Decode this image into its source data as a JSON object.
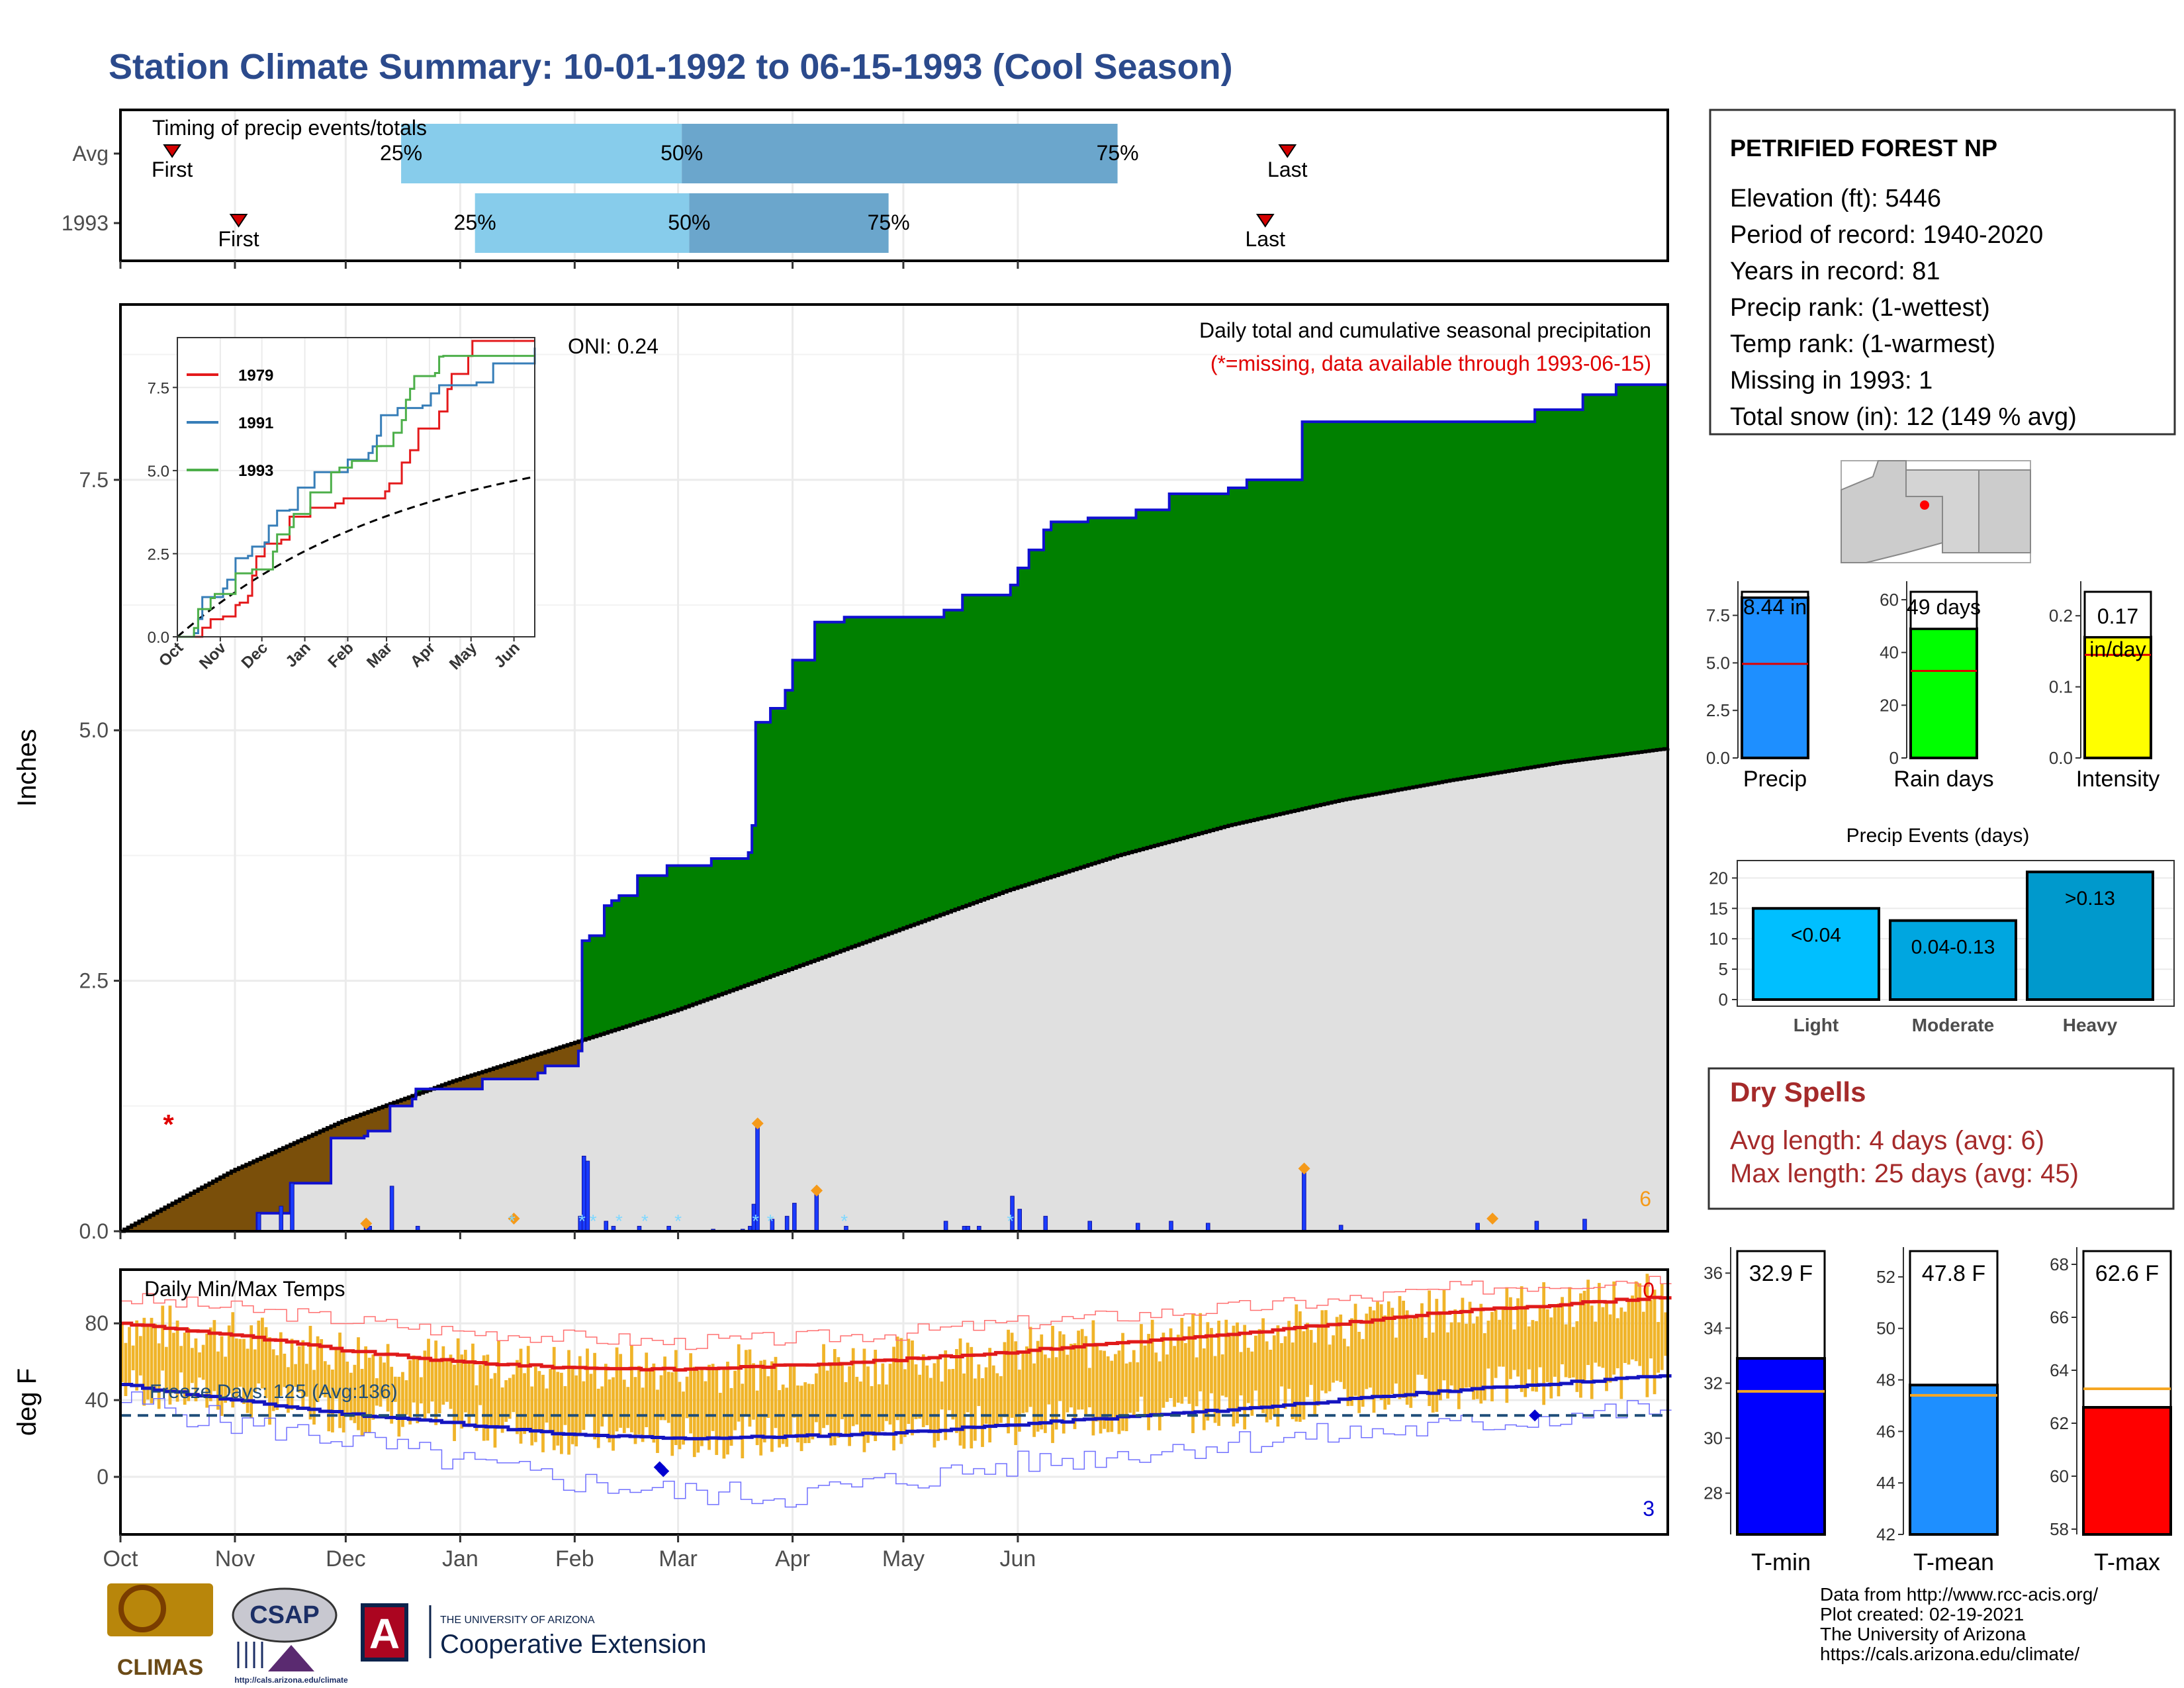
{
  "title": "Station Climate Summary: 10-01-1992 to 06-15-1993 (Cool Season)",
  "colors": {
    "title": "#2b4a8c",
    "cum_avg": "#e0e0e0",
    "cum_year_above": "#008000",
    "cum_year_below": "#7a4f0a",
    "cum_line": "#1010d0",
    "daily_bar": "#1a3cff",
    "marker": "#f59a1a",
    "temp_bar": "#f0b429",
    "tmax_line": "#e01a1a",
    "tmin_line": "#1515c0",
    "freeze_line": "#1f4e79",
    "dry_title": "#a52a2a",
    "timing_light": "#87cceb",
    "timing_dark": "#6ba6cc",
    "precip_bar": "#1e8fff",
    "rain_days_bar": "#00ff00",
    "intensity_bar": "#ffff00",
    "event_light": "#00bfff",
    "event_moderate": "#00a6e0",
    "event_heavy": "#0099cc",
    "tmin_bar": "#0000ff",
    "tmean_bar": "#1e8fff",
    "tmax_bar": "#ff0000"
  },
  "month_labels": [
    "Oct",
    "Nov",
    "Dec",
    "Jan",
    "Feb",
    "Mar",
    "Apr",
    "May",
    "Jun"
  ],
  "timing": {
    "title": "Timing of precip events/totals",
    "rows": [
      {
        "label": "Avg",
        "first_day": 14,
        "p25": 76,
        "p50": 152,
        "p75": 270,
        "last_day": 316,
        "first_text": "First",
        "last_text": "Last",
        "p25_text": "25%",
        "p50_text": "50%",
        "p75_text": "75%"
      },
      {
        "label": "1993",
        "first_day": 32,
        "p25": 96,
        "p50": 154,
        "p75": 208,
        "last_day": 310,
        "first_text": "First",
        "last_text": "Last",
        "p25_text": "25%",
        "p50_text": "50%",
        "p75_text": "75%"
      }
    ]
  },
  "station": {
    "name": "PETRIFIED FOREST NP",
    "lines": [
      "Elevation (ft): 5446",
      "Period of record: 1940-2020",
      "Years in record: 81",
      "Precip rank:  (1-wettest)",
      "Temp rank:  (1-warmest)",
      "Missing in 1993: 1",
      "Total snow (in): 12 (149 % avg)"
    ]
  },
  "main_panel": {
    "ylabel": "Inches",
    "ylim": [
      0,
      9.25
    ],
    "yticks": [
      "0.0",
      "2.5",
      "5.0",
      "7.5"
    ],
    "oni": "ONI: 0.24",
    "legend_title": "Daily total and cumulative seasonal precipitation",
    "legend_note": "(*=missing, data available through 1993-06-15)",
    "count_label": "6",
    "missing_marker": "*",
    "missing_day": 13
  },
  "inset": {
    "yticks": [
      "0.0",
      "2.5",
      "5.0",
      "7.5"
    ],
    "months": [
      "Oct",
      "Nov",
      "Dec",
      "Jan",
      "Feb",
      "Mar",
      "Apr",
      "May",
      "Jun"
    ],
    "legend": [
      {
        "name": "1979",
        "color": "#e41a1c"
      },
      {
        "name": "1991",
        "color": "#377eb8"
      },
      {
        "name": "1993",
        "color": "#4daf4a"
      }
    ]
  },
  "temp_panel": {
    "ylabel": "deg F",
    "title": "Daily Min/Max Temps",
    "yticks": [
      "0",
      "40",
      "80"
    ],
    "freeze_text": "Freeze Days: 125 (Avg:136)",
    "count_top": "0",
    "count_bottom": "3"
  },
  "side_bars": {
    "precip": {
      "label": "Precip",
      "value": 8.44,
      "value_text": "8.44 in",
      "avg": 4.95,
      "ymax": 8.6,
      "ticks": [
        "0.0",
        "2.5",
        "5.0",
        "7.5"
      ]
    },
    "rain_days": {
      "label": "Rain days",
      "value": 49,
      "value_text": "49 days",
      "avg": 33,
      "ymax": 62,
      "ticks": [
        "0",
        "20",
        "40",
        "60"
      ]
    },
    "intensity": {
      "label": "Intensity",
      "value": 0.17,
      "value_text": "0.17 in/day",
      "avg": 0.145,
      "ymax": 0.23,
      "ticks": [
        "0.0",
        "0.1",
        "0.2"
      ]
    }
  },
  "precip_events": {
    "title": "Precip Events (days)",
    "categories": [
      "Light",
      "Moderate",
      "Heavy"
    ],
    "values": [
      15,
      13,
      21
    ],
    "labels": [
      "<0.04",
      "0.04-0.13",
      ">0.13"
    ],
    "ticks": [
      "0",
      "5",
      "10",
      "15",
      "20"
    ]
  },
  "dry_spells": {
    "title": "Dry Spells",
    "lines": [
      "Avg length: 4 days (avg: 6)",
      "Max length: 25 days (avg: 45)"
    ]
  },
  "temp_bars": {
    "tmin": {
      "label": "T-min",
      "value": 32.9,
      "value_text": "32.9 F",
      "avg": 31.7,
      "ylim": [
        26.5,
        36.8
      ],
      "ticks": [
        "28",
        "30",
        "32",
        "34",
        "36"
      ]
    },
    "tmean": {
      "label": "T-mean",
      "value": 47.8,
      "value_text": "47.8 F",
      "avg": 47.4,
      "ylim": [
        42,
        53
      ],
      "ticks": [
        "42",
        "44",
        "46",
        "48",
        "50",
        "52"
      ]
    },
    "tmax": {
      "label": "T-max",
      "value": 62.6,
      "value_text": "62.6 F",
      "avg": 63.3,
      "ylim": [
        57.8,
        68.5
      ],
      "ticks": [
        "58",
        "60",
        "62",
        "64",
        "66",
        "68"
      ]
    }
  },
  "footer": {
    "lines": [
      "Data from http://www.rcc-acis.org/",
      "Plot created: 02-19-2021",
      "The University of Arizona",
      "https://cals.arizona.edu/climate/"
    ],
    "logo_climas": "CLIMAS",
    "logo_csap": "CSAP",
    "logo_csap_url": "http://cals.arizona.edu/climate",
    "logo_uofa_small": "THE UNIVERSITY OF ARIZONA",
    "logo_uofa_big": "Cooperative Extension",
    "logo_uofa_letter": "A"
  },
  "chart_data": [
    {
      "type": "area",
      "title": "Daily total and cumulative seasonal precipitation",
      "ylabel": "Inches",
      "ylim": [
        0,
        9.25
      ],
      "x_unit": "days since 1992-10-01",
      "cumulative_1993": [
        [
          0,
          0
        ],
        [
          35,
          0
        ],
        [
          37,
          0.18
        ],
        [
          46,
          0.48
        ],
        [
          57,
          0.93
        ],
        [
          66,
          0.95
        ],
        [
          67,
          1.0
        ],
        [
          73,
          1.25
        ],
        [
          79,
          1.32
        ],
        [
          80,
          1.42
        ],
        [
          97,
          1.42
        ],
        [
          98,
          1.52
        ],
        [
          113,
          1.58
        ],
        [
          115,
          1.65
        ],
        [
          124,
          1.8
        ],
        [
          125,
          2.9
        ],
        [
          127,
          2.95
        ],
        [
          131,
          3.25
        ],
        [
          133,
          3.3
        ],
        [
          135,
          3.35
        ],
        [
          140,
          3.55
        ],
        [
          148,
          3.65
        ],
        [
          160,
          3.72
        ],
        [
          170,
          3.78
        ],
        [
          171,
          4.05
        ],
        [
          172,
          5.08
        ],
        [
          176,
          5.22
        ],
        [
          180,
          5.4
        ],
        [
          182,
          5.7
        ],
        [
          188,
          6.08
        ],
        [
          196,
          6.13
        ],
        [
          223,
          6.2
        ],
        [
          228,
          6.35
        ],
        [
          241,
          6.45
        ],
        [
          243,
          6.62
        ],
        [
          246,
          6.8
        ],
        [
          250,
          7.0
        ],
        [
          252,
          7.08
        ],
        [
          262,
          7.12
        ],
        [
          275,
          7.2
        ],
        [
          284,
          7.36
        ],
        [
          300,
          7.42
        ],
        [
          305,
          7.5
        ],
        [
          320,
          8.08
        ],
        [
          383,
          8.2
        ],
        [
          396,
          8.35
        ],
        [
          405,
          8.45
        ],
        [
          419,
          8.45
        ]
      ],
      "average_cumulative": [
        [
          0,
          0
        ],
        [
          30,
          0.6
        ],
        [
          60,
          1.1
        ],
        [
          90,
          1.5
        ],
        [
          120,
          1.85
        ],
        [
          150,
          2.2
        ],
        [
          180,
          2.6
        ],
        [
          210,
          3.0
        ],
        [
          240,
          3.4
        ],
        [
          270,
          3.75
        ],
        [
          300,
          4.05
        ],
        [
          330,
          4.3
        ],
        [
          360,
          4.5
        ],
        [
          390,
          4.68
        ],
        [
          419,
          4.82
        ]
      ],
      "daily_events": [
        [
          37,
          0.18
        ],
        [
          43,
          0.25
        ],
        [
          46,
          0.48
        ],
        [
          66,
          0.05
        ],
        [
          67,
          0.05
        ],
        [
          73,
          0.45
        ],
        [
          80,
          0.05
        ],
        [
          124,
          0.15
        ],
        [
          125,
          0.75
        ],
        [
          126,
          0.7
        ],
        [
          131,
          0.1
        ],
        [
          133,
          0.05
        ],
        [
          140,
          0.05
        ],
        [
          148,
          0.05
        ],
        [
          160,
          0.02
        ],
        [
          168,
          0.02
        ],
        [
          170,
          0.05
        ],
        [
          171,
          0.27
        ],
        [
          172,
          1.05
        ],
        [
          176,
          0.12
        ],
        [
          180,
          0.15
        ],
        [
          182,
          0.28
        ],
        [
          188,
          0.38
        ],
        [
          196,
          0.05
        ],
        [
          223,
          0.1
        ],
        [
          228,
          0.05
        ],
        [
          229,
          0.05
        ],
        [
          232,
          0.05
        ],
        [
          241,
          0.35
        ],
        [
          243,
          0.22
        ],
        [
          250,
          0.15
        ],
        [
          262,
          0.1
        ],
        [
          275,
          0.08
        ],
        [
          284,
          0.1
        ],
        [
          294,
          0.08
        ],
        [
          320,
          0.6
        ],
        [
          330,
          0.06
        ],
        [
          367,
          0.08
        ],
        [
          383,
          0.1
        ],
        [
          396,
          0.12
        ]
      ],
      "marked_events_day": [
        66,
        106,
        172,
        188,
        320,
        371
      ]
    },
    {
      "type": "line",
      "title": "Daily Min/Max Temps",
      "ylabel": "deg F",
      "ylim": [
        -30,
        108
      ],
      "x_unit": "days since 1992-10-01",
      "avg_tmax": [
        [
          0,
          80
        ],
        [
          30,
          74
        ],
        [
          60,
          66
        ],
        [
          90,
          60
        ],
        [
          120,
          57
        ],
        [
          150,
          56
        ],
        [
          180,
          58
        ],
        [
          210,
          61
        ],
        [
          240,
          65
        ],
        [
          270,
          70
        ],
        [
          300,
          74
        ],
        [
          330,
          80
        ],
        [
          360,
          86
        ],
        [
          390,
          90
        ],
        [
          419,
          94
        ]
      ],
      "avg_tmin": [
        [
          0,
          48
        ],
        [
          30,
          40
        ],
        [
          60,
          33
        ],
        [
          90,
          28
        ],
        [
          120,
          22
        ],
        [
          150,
          20
        ],
        [
          180,
          21
        ],
        [
          210,
          23
        ],
        [
          240,
          27
        ],
        [
          270,
          31
        ],
        [
          300,
          35
        ],
        [
          330,
          40
        ],
        [
          360,
          45
        ],
        [
          390,
          49
        ],
        [
          419,
          53
        ]
      ],
      "record_max": [
        [
          0,
          93
        ],
        [
          30,
          88
        ],
        [
          60,
          82
        ],
        [
          90,
          76
        ],
        [
          120,
          73
        ],
        [
          150,
          70
        ],
        [
          180,
          72
        ],
        [
          210,
          75
        ],
        [
          240,
          80
        ],
        [
          270,
          84
        ],
        [
          300,
          88
        ],
        [
          330,
          92
        ],
        [
          360,
          98
        ],
        [
          390,
          101
        ],
        [
          419,
          104
        ]
      ],
      "record_min": [
        [
          0,
          40
        ],
        [
          30,
          28
        ],
        [
          60,
          20
        ],
        [
          90,
          8
        ],
        [
          120,
          -2
        ],
        [
          150,
          -8
        ],
        [
          180,
          -10
        ],
        [
          210,
          -2
        ],
        [
          240,
          6
        ],
        [
          270,
          12
        ],
        [
          300,
          18
        ],
        [
          330,
          22
        ],
        [
          360,
          26
        ],
        [
          390,
          32
        ],
        [
          419,
          36
        ]
      ],
      "freeze_line": 32
    }
  ]
}
